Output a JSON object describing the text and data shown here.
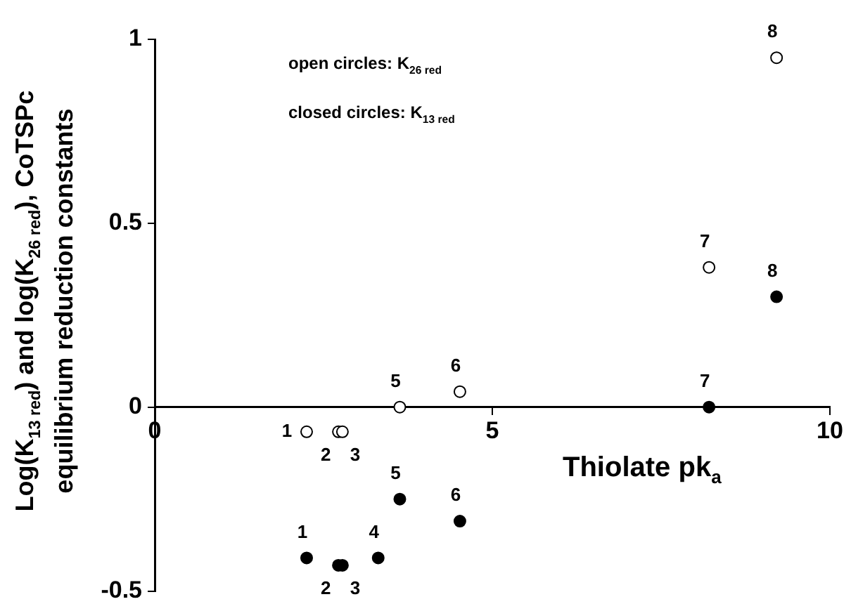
{
  "chart_data": {
    "type": "scatter",
    "xlabel": "Thiolate pk$_{a}$",
    "ylabel": "Log(K$_{13 red}$) and log(K$_{26 red}$), CoTSPc equilibrium reduction constants",
    "xlim": [
      0,
      10
    ],
    "xticks": [
      0,
      5,
      10
    ],
    "ylim": [
      -0.5,
      1
    ],
    "yticks": [
      1,
      0.5,
      0,
      {
        "value": -0.5,
        "label": "-0.5"
      }
    ],
    "grid": false,
    "legend": false,
    "marker": "circle",
    "series": [
      {
        "color": "#ffffff",
        "x": [
          2.25,
          2.72,
          2.78,
          3.63,
          4.52,
          8.21,
          9.21
        ],
        "values": [
          -0.067,
          -0.067,
          -0.067,
          0,
          0.042,
          0.38,
          0.95
        ]
      },
      {
        "color": "#000000",
        "x": [
          2.25,
          2.72,
          2.78,
          3.31,
          3.63,
          4.52,
          8.21,
          9.21
        ],
        "values": [
          -0.41,
          -0.43,
          -0.43,
          -0.41,
          -0.25,
          -0.31,
          0,
          0.3
        ]
      }
    ],
    "annotations": [
      "open circles: K$_{26 red}$",
      "closed circles: K$_{13 red}$",
      {
        "text": "1",
        "x": 2.25,
        "y": -0.067
      },
      {
        "text": "2",
        "x": 2.72,
        "y": -0.067
      },
      {
        "text": "3",
        "x": 2.78,
        "y": -0.067
      },
      {
        "text": "5",
        "x": 3.63,
        "y": 0
      },
      {
        "text": "6",
        "x": 4.52,
        "y": 0.042
      },
      {
        "text": "7",
        "x": 8.21,
        "y": 0.38
      },
      {
        "text": "8",
        "x": 9.21,
        "y": 0.95
      },
      {
        "text": "1",
        "x": 2.25,
        "y": -0.41
      },
      {
        "text": "2",
        "x": 2.72,
        "y": -0.43
      },
      {
        "text": "3",
        "x": 2.78,
        "y": -0.43
      },
      {
        "text": "4",
        "x": 3.31,
        "y": -0.41
      },
      {
        "text": "5",
        "x": 3.63,
        "y": -0.25
      },
      {
        "text": "6",
        "x": 4.52,
        "y": -0.31
      },
      {
        "text": "7",
        "x": 8.21,
        "y": 0
      },
      {
        "text": "8",
        "x": 9.21,
        "y": 0.3
      }
    ]
  }
}
